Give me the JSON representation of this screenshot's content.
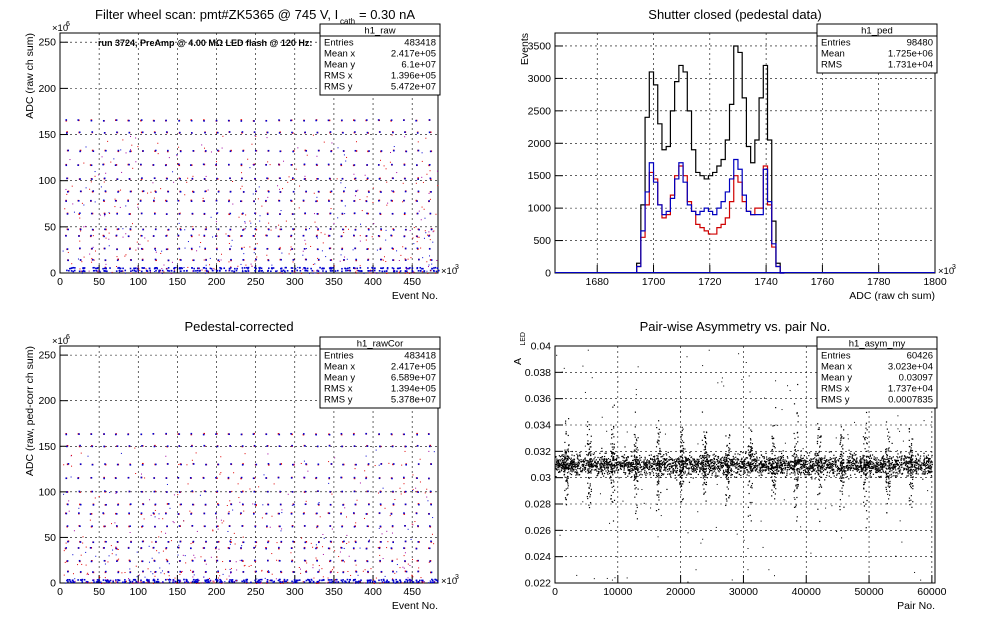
{
  "chart_data": [
    {
      "id": "raw",
      "type": "scatter",
      "title": "Filter wheel scan: pmt#ZK5365 @  745 V, I",
      "title_sub": "cath",
      "title_tail": " = 0.30 nA",
      "annotation": "run 3724, PreAmp @ 4.00 MΩ LED flash @  120 Hz:",
      "xlabel": "Event No.",
      "ylabel": "ADC (raw ch sum)",
      "x_exponent": "×10",
      "x_exponent_power": "3",
      "y_exponent": "×10",
      "y_exponent_power": "6",
      "xlim": [
        0,
        483
      ],
      "ylim": [
        0,
        260
      ],
      "x_ticks": [
        0,
        50,
        100,
        150,
        200,
        250,
        300,
        350,
        400,
        450
      ],
      "y_ticks": [
        0,
        50,
        100,
        150,
        200,
        250
      ],
      "grid": true,
      "levels": [
        165,
        152,
        132,
        117,
        102,
        88,
        78,
        64,
        47,
        40,
        26,
        14,
        5,
        2
      ],
      "stats": {
        "name": "h1_raw",
        "rows": [
          [
            "Entries",
            "483418"
          ],
          [
            "Mean x",
            "2.417e+05"
          ],
          [
            "Mean y",
            "6.1e+07"
          ],
          [
            "RMS x",
            "1.396e+05"
          ],
          [
            "RMS y",
            "5.472e+07"
          ]
        ]
      },
      "colors": {
        "high": "#e00000",
        "low": "#0000d0",
        "mid": "#a000a0"
      }
    },
    {
      "id": "ped",
      "type": "histogram",
      "title": "Shutter closed (pedestal data)",
      "xlabel": "ADC (raw ch sum)",
      "ylabel": "Events",
      "x_exponent": "×10",
      "x_exponent_power": "3",
      "xlim": [
        1665,
        1800
      ],
      "ylim": [
        0,
        3700
      ],
      "x_ticks": [
        1680,
        1700,
        1720,
        1740,
        1760,
        1780,
        1800
      ],
      "y_ticks": [
        0,
        500,
        1000,
        1500,
        2000,
        2500,
        3000,
        3500
      ],
      "grid": true,
      "bin_start": 1694,
      "bin_width": 1.5,
      "series": [
        {
          "color": "#000000",
          "values": [
            150,
            1050,
            2400,
            3100,
            2900,
            2300,
            1900,
            1950,
            2500,
            2950,
            3200,
            3100,
            2500,
            1900,
            1550,
            1500,
            1450,
            1500,
            1550,
            1650,
            1750,
            2050,
            2600,
            3500,
            3400,
            2700,
            1950,
            1700,
            2050,
            2700,
            3200,
            2050,
            800,
            150,
            0
          ]
        },
        {
          "color": "#d00000",
          "values": [
            100,
            550,
            1050,
            1550,
            1450,
            1050,
            850,
            900,
            1200,
            1500,
            1650,
            1500,
            1100,
            950,
            750,
            700,
            650,
            600,
            600,
            700,
            750,
            850,
            1100,
            1500,
            1400,
            1100,
            950,
            900,
            1000,
            1000,
            1650,
            1050,
            400,
            100,
            0
          ]
        },
        {
          "color": "#0000c0",
          "values": [
            100,
            650,
            1250,
            1700,
            1400,
            1050,
            900,
            950,
            1150,
            1450,
            1700,
            1400,
            1050,
            950,
            900,
            950,
            1000,
            950,
            900,
            1000,
            1100,
            1250,
            1450,
            1750,
            1600,
            1200,
            950,
            900,
            900,
            900,
            1600,
            1100,
            450,
            100,
            0
          ]
        }
      ],
      "stats": {
        "name": "h1_ped",
        "rows": [
          [
            "Entries",
            "98480"
          ],
          [
            "Mean",
            "1.725e+06"
          ],
          [
            "RMS",
            "1.731e+04"
          ]
        ]
      }
    },
    {
      "id": "rawCor",
      "type": "scatter",
      "title": "Pedestal-corrected",
      "xlabel": "Event No.",
      "ylabel": "ADC (raw, ped-corr ch sum)",
      "x_exponent": "×10",
      "x_exponent_power": "3",
      "y_exponent": "×10",
      "y_exponent_power": "6",
      "xlim": [
        0,
        483
      ],
      "ylim": [
        0,
        260
      ],
      "x_ticks": [
        0,
        50,
        100,
        150,
        200,
        250,
        300,
        350,
        400,
        450
      ],
      "y_ticks": [
        0,
        50,
        100,
        150,
        200,
        250
      ],
      "grid": true,
      "levels": [
        163,
        150,
        130,
        115,
        100,
        86,
        76,
        62,
        45,
        38,
        24,
        12,
        3,
        1
      ],
      "stats": {
        "name": "h1_rawCor",
        "rows": [
          [
            "Entries",
            "483418"
          ],
          [
            "Mean x",
            "2.417e+05"
          ],
          [
            "Mean y",
            "6.589e+07"
          ],
          [
            "RMS x",
            "1.394e+05"
          ],
          [
            "RMS y",
            "5.378e+07"
          ]
        ]
      },
      "colors": {
        "high": "#e00000",
        "low": "#0000d0",
        "mid": "#a000a0"
      }
    },
    {
      "id": "asym",
      "type": "scatter",
      "title": "Pair-wise Asymmetry vs. pair No.",
      "xlabel": "Pair No.",
      "ylabel": "A",
      "ylabel_sub": "LED",
      "xlim": [
        0,
        60500
      ],
      "ylim": [
        0.022,
        0.04
      ],
      "x_ticks": [
        0,
        10000,
        20000,
        30000,
        40000,
        50000,
        60000
      ],
      "y_ticks": [
        0.022,
        0.024,
        0.026,
        0.028,
        0.03,
        0.032,
        0.034,
        0.036,
        0.038,
        0.04
      ],
      "grid": true,
      "band_center": 0.031,
      "band_halfwidth": 0.0007,
      "spike_positions": [
        1800,
        5400,
        9100,
        12800,
        16400,
        20100,
        23700,
        27400,
        31000,
        34700,
        38300,
        42000,
        45600,
        49300,
        52900,
        56600
      ],
      "stats": {
        "name": "h1_asym_my",
        "rows": [
          [
            "Entries",
            "60426"
          ],
          [
            "Mean x",
            "3.023e+04"
          ],
          [
            "Mean y",
            "0.03097"
          ],
          [
            "RMS x",
            "1.737e+04"
          ],
          [
            "RMS y",
            "0.0007835"
          ]
        ]
      },
      "colors": {
        "points": "#000000"
      }
    }
  ]
}
